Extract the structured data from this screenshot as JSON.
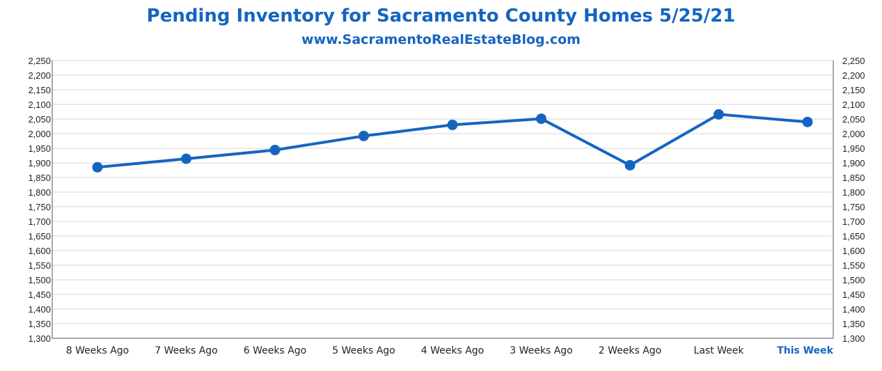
{
  "title": "Pending Inventory for Sacramento County Homes 5/25/21",
  "subtitle": "www.SacramentoRealEstateBlog.com",
  "colors": {
    "accent": "#1565c0",
    "grid": "#e3e3e3",
    "axis": "#555555"
  },
  "chart_data": {
    "type": "line",
    "categories": [
      "8 Weeks Ago",
      "7 Weeks Ago",
      "6 Weeks Ago",
      "5 Weeks Ago",
      "4 Weeks Ago",
      "3 Weeks Ago",
      "2 Weeks Ago",
      "Last Week",
      "This Week"
    ],
    "highlight_category": "This Week",
    "series": [
      {
        "values": [
          1885,
          1914,
          1944,
          1992,
          2030,
          2051,
          1892,
          2066,
          2040
        ]
      }
    ],
    "ylim": [
      1300,
      2250
    ],
    "ytick_step": 50,
    "yticks": [
      "1,300",
      "1,350",
      "1,400",
      "1,450",
      "1,500",
      "1,550",
      "1,600",
      "1,650",
      "1,700",
      "1,750",
      "1,800",
      "1,850",
      "1,900",
      "1,950",
      "2,000",
      "2,050",
      "2,100",
      "2,150",
      "2,200",
      "2,250"
    ],
    "y_axis_left": true,
    "y_axis_right": true,
    "grid": true,
    "legend": "none",
    "xlabel": "",
    "ylabel": ""
  }
}
